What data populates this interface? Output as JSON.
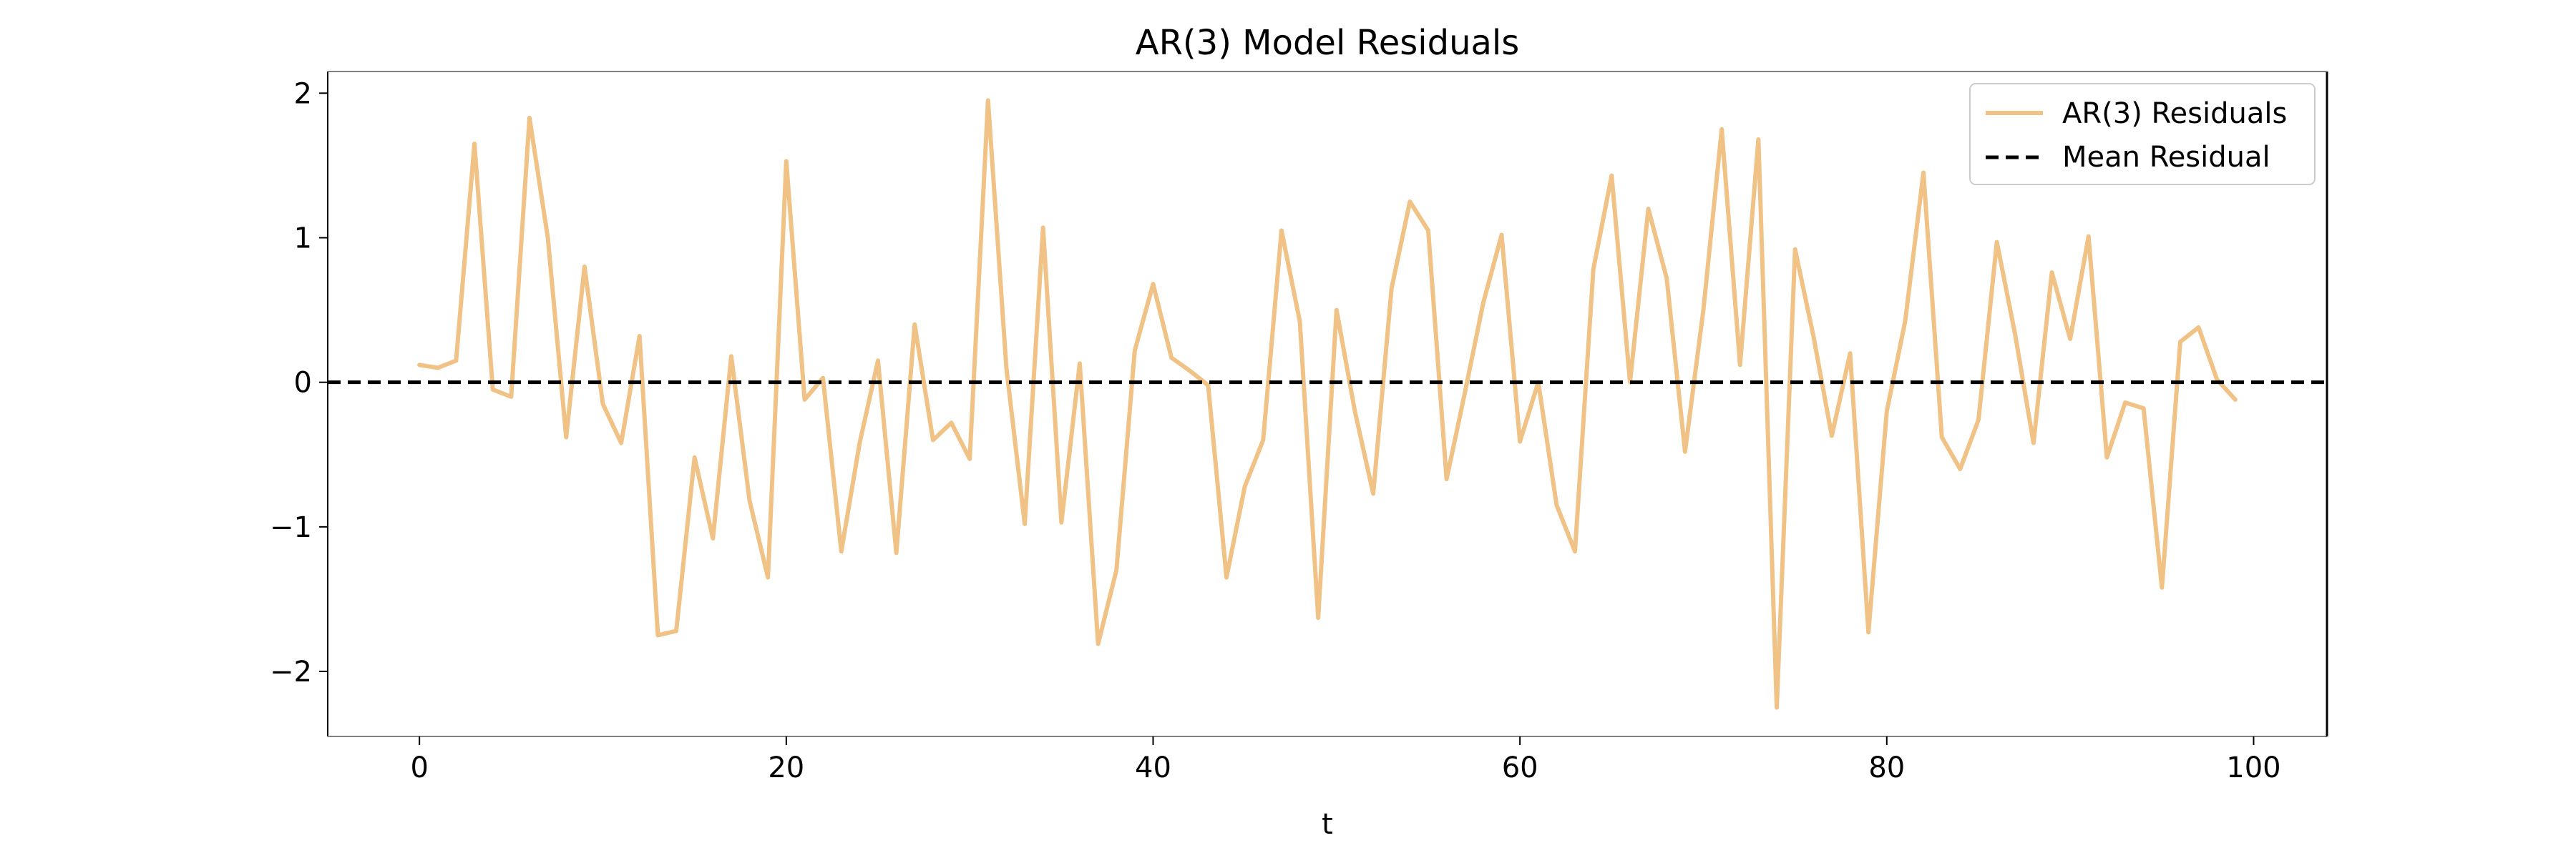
{
  "chart_data": {
    "type": "line",
    "title": "AR(3) Model Residuals",
    "xlabel": "t",
    "ylabel": "",
    "xlim": [
      -5,
      104
    ],
    "ylim": [
      -2.45,
      2.15
    ],
    "xticks": [
      0,
      20,
      40,
      60,
      80,
      100
    ],
    "yticks": [
      -2,
      -1,
      0,
      1,
      2
    ],
    "xtick_labels": [
      "0",
      "20",
      "40",
      "60",
      "80",
      "100"
    ],
    "ytick_labels": [
      "−2",
      "−1",
      "0",
      "1",
      "2"
    ],
    "grid": false,
    "legend_position": "top-right",
    "series": [
      {
        "name": "AR(3) Residuals",
        "color": "#f0c286",
        "style": "solid",
        "x": [
          0,
          1,
          2,
          3,
          4,
          5,
          6,
          7,
          8,
          9,
          10,
          11,
          12,
          13,
          14,
          15,
          16,
          17,
          18,
          19,
          20,
          21,
          22,
          23,
          24,
          25,
          26,
          27,
          28,
          29,
          30,
          31,
          32,
          33,
          34,
          35,
          36,
          37,
          38,
          39,
          40,
          41,
          42,
          43,
          44,
          45,
          46,
          47,
          48,
          49,
          50,
          51,
          52,
          53,
          54,
          55,
          56,
          57,
          58,
          59,
          60,
          61,
          62,
          63,
          64,
          65,
          66,
          67,
          68,
          69,
          70,
          71,
          72,
          73,
          74,
          75,
          76,
          77,
          78,
          79,
          80,
          81,
          82,
          83,
          84,
          85,
          86,
          87,
          88,
          89,
          90,
          91,
          92,
          93,
          94,
          95,
          96,
          97,
          98,
          99
        ],
        "y": [
          0.12,
          0.1,
          0.15,
          1.65,
          -0.05,
          -0.1,
          1.83,
          1.0,
          -0.38,
          0.8,
          -0.15,
          -0.42,
          0.32,
          -1.75,
          -1.72,
          -0.52,
          -1.08,
          0.18,
          -0.82,
          -1.35,
          1.53,
          -0.12,
          0.03,
          -1.17,
          -0.42,
          0.15,
          -1.18,
          0.4,
          -0.4,
          -0.28,
          -0.53,
          1.95,
          0.1,
          -0.98,
          1.07,
          -0.97,
          0.13,
          -1.81,
          -1.3,
          0.22,
          0.68,
          0.17,
          0.08,
          -0.02,
          -1.35,
          -0.72,
          -0.4,
          1.05,
          0.42,
          -1.63,
          0.5,
          -0.2,
          -0.77,
          0.65,
          1.25,
          1.05,
          -0.67,
          -0.07,
          0.55,
          1.02,
          -0.41,
          0.0,
          -0.85,
          -1.17,
          0.78,
          1.43,
          0.0,
          1.2,
          0.72,
          -0.48,
          0.5,
          1.75,
          0.12,
          1.68,
          -2.25,
          0.92,
          0.32,
          -0.37,
          0.2,
          -1.73,
          -0.2,
          0.42,
          1.45,
          -0.38,
          -0.6,
          -0.26,
          0.97,
          0.33,
          -0.42,
          0.76,
          0.3,
          1.01,
          -0.52,
          -0.14,
          -0.18,
          -1.42,
          0.28,
          0.38,
          0.02,
          -0.12
        ]
      },
      {
        "name": "Mean Residual",
        "color": "#000000",
        "style": "dashed",
        "x": [
          -5,
          104
        ],
        "y": [
          0.0,
          0.0
        ]
      }
    ]
  }
}
